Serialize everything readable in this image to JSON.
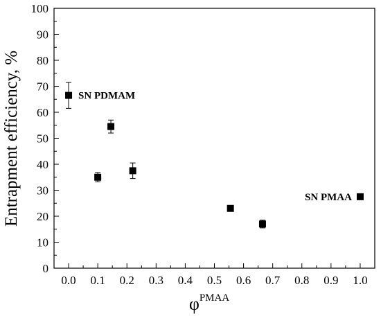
{
  "chart_data": {
    "type": "scatter",
    "xlabel": "φ",
    "xlabel_superscript": "PMAA",
    "ylabel": "Entrapment efficiency, %",
    "xlim": [
      -0.05,
      1.05
    ],
    "ylim": [
      0,
      100
    ],
    "x_ticks": [
      0.0,
      0.1,
      0.2,
      0.3,
      0.4,
      0.5,
      0.6,
      0.7,
      0.8,
      0.9,
      1.0
    ],
    "x_tick_labels": [
      "0.0",
      "0.1",
      "0.2",
      "0.3",
      "0.4",
      "0.5",
      "0.6",
      "0.7",
      "0.8",
      "0.9",
      "1.0"
    ],
    "y_ticks": [
      0,
      10,
      20,
      30,
      40,
      50,
      60,
      70,
      80,
      90,
      100
    ],
    "y_tick_labels": [
      "0",
      "10",
      "20",
      "30",
      "40",
      "50",
      "60",
      "70",
      "80",
      "90",
      "100"
    ],
    "grid": false,
    "marker": "filled-square",
    "points": [
      {
        "x": 0.0,
        "y": 66.5,
        "err": 5.0
      },
      {
        "x": 0.1,
        "y": 35.0,
        "err": 1.8
      },
      {
        "x": 0.145,
        "y": 54.5,
        "err": 2.5
      },
      {
        "x": 0.22,
        "y": 37.5,
        "err": 3.0
      },
      {
        "x": 0.555,
        "y": 23.0,
        "err": 0.8
      },
      {
        "x": 0.665,
        "y": 17.0,
        "err": 1.5
      },
      {
        "x": 1.0,
        "y": 27.5,
        "err": 0.7
      }
    ],
    "annotations": [
      {
        "text": "SN PDMAM",
        "x": 0.0,
        "y": 66.5
      },
      {
        "text": "SN PMAA",
        "x": 1.0,
        "y": 27.5
      }
    ]
  }
}
